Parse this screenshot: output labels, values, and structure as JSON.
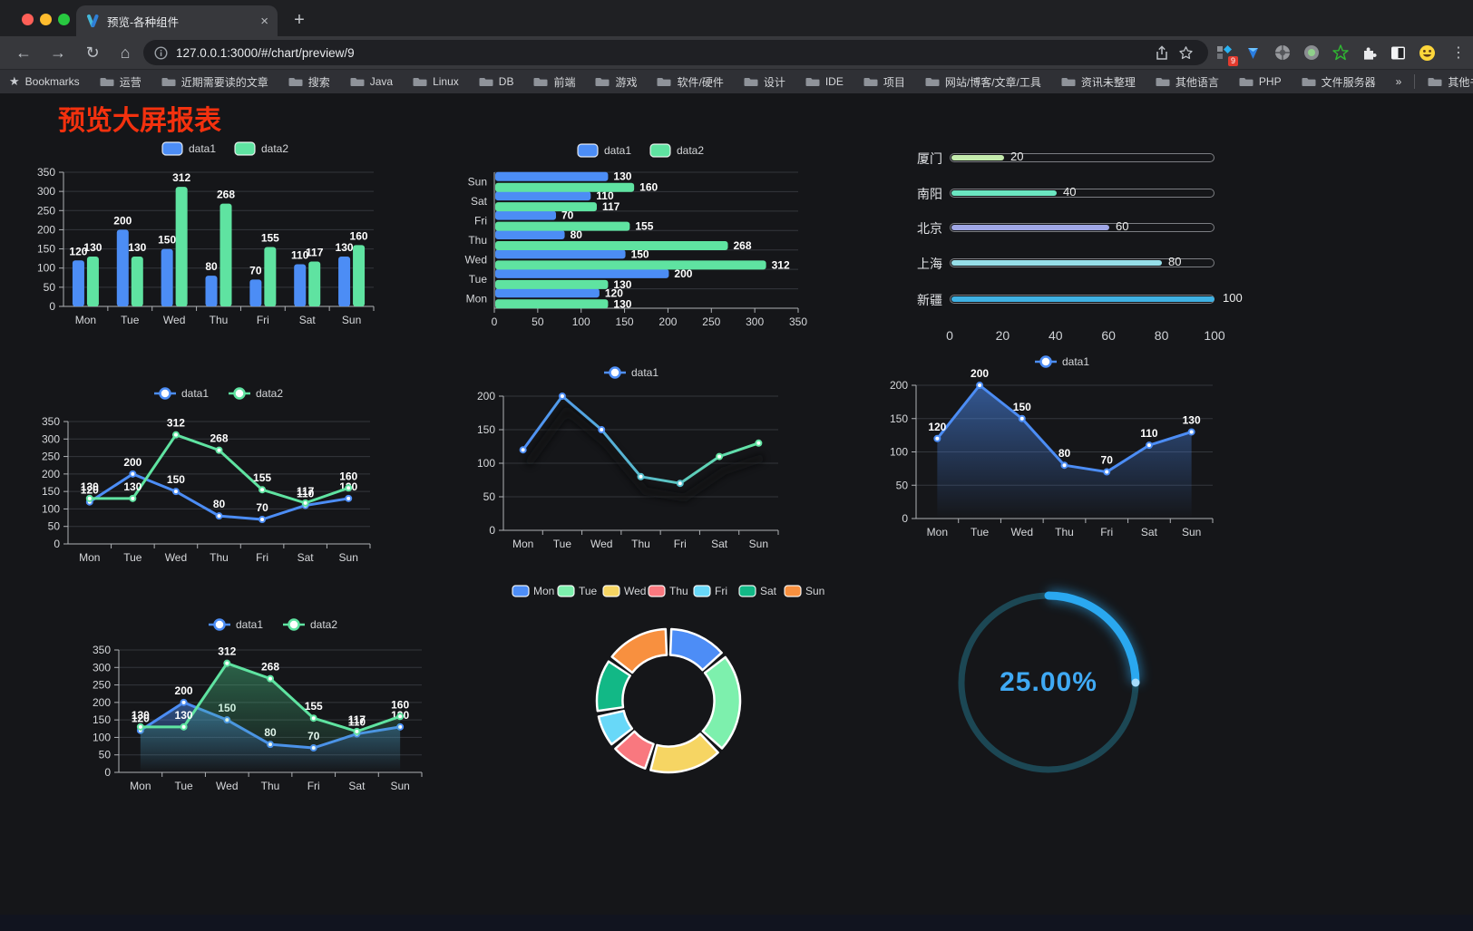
{
  "browser": {
    "traffic_lights": [
      "#ff5f57",
      "#febc2e",
      "#28c840"
    ],
    "tab": {
      "title": "预览-各种组件",
      "close": "×",
      "new_tab": "+"
    },
    "toolbar": {
      "back": "←",
      "forward": "→",
      "reload": "↻",
      "home": "⌂",
      "url": "127.0.0.1:3000/#/chart/preview/9",
      "extension_badge": "9",
      "menu": "⋮"
    },
    "bookmarks": {
      "star_icon": "★",
      "star_label": "Bookmarks",
      "folders": [
        "运营",
        "近期需要读的文章",
        "搜索",
        "Java",
        "Linux",
        "DB",
        "前端",
        "游戏",
        "软件/硬件",
        "设计",
        "IDE",
        "项目",
        "网站/博客/文章/工具",
        "资讯未整理",
        "其他语言",
        "PHP",
        "文件服务器"
      ],
      "overflow": "»",
      "other_bookmarks": "其他书签"
    }
  },
  "page": {
    "title": "预览大屏报表",
    "title_color": "#f3310e"
  },
  "chart_data": [
    {
      "id": "bar-grouped",
      "type": "bar",
      "orientation": "vertical",
      "categories": [
        "Mon",
        "Tue",
        "Wed",
        "Thu",
        "Fri",
        "Sat",
        "Sun"
      ],
      "series": [
        {
          "name": "data1",
          "color": "#4c8df5",
          "values": [
            120,
            200,
            150,
            80,
            70,
            110,
            130
          ]
        },
        {
          "name": "data2",
          "color": "#5fe3a1",
          "values": [
            130,
            130,
            312,
            268,
            155,
            117,
            160
          ]
        }
      ],
      "ylim": [
        0,
        350
      ],
      "ytick_step": 50,
      "grid": true,
      "value_labels": true,
      "legend_position": "top"
    },
    {
      "id": "bar-horizontal",
      "type": "bar",
      "orientation": "horizontal",
      "categories": [
        "Mon",
        "Tue",
        "Wed",
        "Thu",
        "Fri",
        "Sat",
        "Sun"
      ],
      "series": [
        {
          "name": "data1",
          "color": "#4c8df5",
          "values": [
            120,
            200,
            150,
            80,
            70,
            110,
            130
          ]
        },
        {
          "name": "data2",
          "color": "#5fe3a1",
          "values": [
            130,
            130,
            312,
            268,
            155,
            117,
            160
          ]
        }
      ],
      "xlim": [
        0,
        350
      ],
      "xtick_step": 50,
      "grid": true,
      "value_labels": true,
      "legend_position": "top"
    },
    {
      "id": "city-progress",
      "type": "bar",
      "subtype": "progress",
      "items": [
        {
          "label": "厦门",
          "value": 20,
          "color": "#c4ebad"
        },
        {
          "label": "南阳",
          "value": 40,
          "color": "#6be6c1"
        },
        {
          "label": "北京",
          "value": 60,
          "color": "#a0a7e6"
        },
        {
          "label": "上海",
          "value": 80,
          "color": "#96dee8"
        },
        {
          "label": "新疆",
          "value": 100,
          "color": "#3fb1e3"
        }
      ],
      "xlim": [
        0,
        100
      ],
      "xticks": [
        0,
        20,
        40,
        60,
        80,
        100
      ]
    },
    {
      "id": "line-two-series",
      "type": "line",
      "categories": [
        "Mon",
        "Tue",
        "Wed",
        "Thu",
        "Fri",
        "Sat",
        "Sun"
      ],
      "series": [
        {
          "name": "data1",
          "color": "#4c8df5",
          "values": [
            120,
            200,
            150,
            80,
            70,
            110,
            130
          ]
        },
        {
          "name": "data2",
          "color": "#5fe3a1",
          "values": [
            130,
            130,
            312,
            268,
            155,
            117,
            160
          ]
        }
      ],
      "ylim": [
        0,
        350
      ],
      "ytick_step": 50,
      "grid": true,
      "value_labels": true,
      "legend_position": "top"
    },
    {
      "id": "line-gradient",
      "type": "line",
      "categories": [
        "Mon",
        "Tue",
        "Wed",
        "Thu",
        "Fri",
        "Sat",
        "Sun"
      ],
      "series": [
        {
          "name": "data1",
          "gradient": [
            "#4f8ff7",
            "#63e6a3"
          ],
          "values": [
            120,
            200,
            150,
            80,
            70,
            110,
            130
          ]
        }
      ],
      "ylim": [
        0,
        200
      ],
      "ytick_step": 50,
      "grid": true,
      "value_labels": false,
      "shadow": true,
      "legend_position": "top"
    },
    {
      "id": "area-single",
      "type": "area",
      "categories": [
        "Mon",
        "Tue",
        "Wed",
        "Thu",
        "Fri",
        "Sat",
        "Sun"
      ],
      "series": [
        {
          "name": "data1",
          "color": "#4c8df5",
          "fill_top": "rgba(76,141,245,0.55)",
          "fill_bottom": "rgba(76,141,245,0)",
          "values": [
            120,
            200,
            150,
            80,
            70,
            110,
            130
          ]
        }
      ],
      "ylim": [
        0,
        200
      ],
      "ytick_step": 50,
      "grid": true,
      "value_labels": true,
      "legend_position": "top"
    },
    {
      "id": "line-area-two",
      "type": "area",
      "categories": [
        "Mon",
        "Tue",
        "Wed",
        "Thu",
        "Fri",
        "Sat",
        "Sun"
      ],
      "series": [
        {
          "name": "data1",
          "color": "#4c8df5",
          "fill_top": "rgba(76,141,245,0.50)",
          "fill_bottom": "rgba(76,141,245,0)",
          "values": [
            120,
            200,
            150,
            80,
            70,
            110,
            130
          ]
        },
        {
          "name": "data2",
          "color": "#5fe3a1",
          "fill_top": "rgba(70,190,130,0.45)",
          "fill_bottom": "rgba(70,190,130,0)",
          "values": [
            130,
            130,
            312,
            268,
            155,
            117,
            160
          ]
        }
      ],
      "ylim": [
        0,
        350
      ],
      "ytick_step": 50,
      "grid": true,
      "value_labels": true,
      "legend_position": "top"
    },
    {
      "id": "donut",
      "type": "pie",
      "categories": [
        "Mon",
        "Tue",
        "Wed",
        "Thu",
        "Fri",
        "Sat",
        "Sun"
      ],
      "values": [
        120,
        200,
        150,
        80,
        70,
        110,
        130
      ],
      "colors": [
        "#4d8df6",
        "#7df0ad",
        "#f6d563",
        "#f9787f",
        "#68d8f8",
        "#12b886",
        "#f8903f"
      ],
      "legend_position": "top",
      "inner_radius_ratio": 0.64,
      "border_color": "#ffffff"
    },
    {
      "id": "gauge",
      "type": "gauge",
      "value": 25,
      "label": "25.00%",
      "color": "#2aa8f0",
      "track_color": "#1c4754",
      "text_color": "#3fa9f4"
    }
  ]
}
